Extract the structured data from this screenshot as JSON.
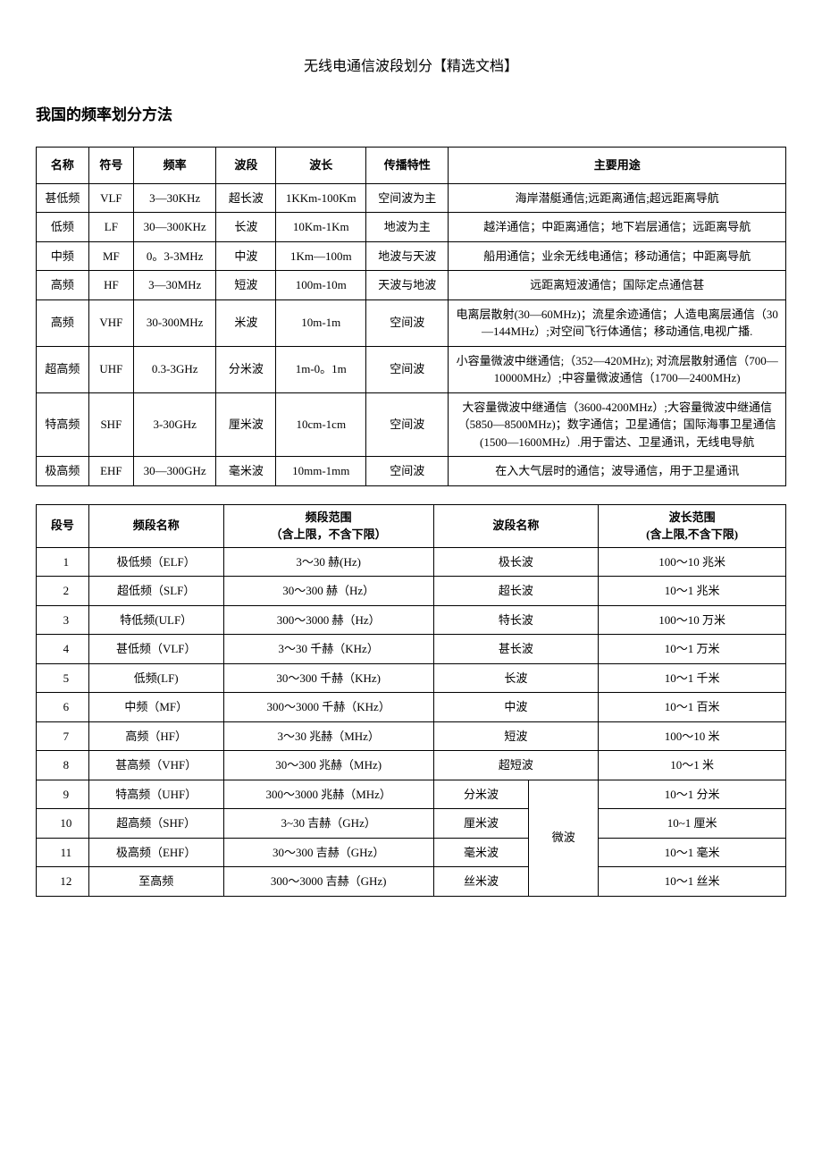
{
  "page_title": "无线电通信波段划分【精选文档】",
  "section_title": "我国的频率划分方法",
  "table1": {
    "headers": [
      "名称",
      "符号",
      "频率",
      "波段",
      "波长",
      "传播特性",
      "主要用途"
    ],
    "rows": [
      [
        "甚低频",
        "VLF",
        "3—30KHz",
        "超长波",
        "1KKm-100Km",
        "空间波为主",
        "海岸潜艇通信;远距离通信;超远距离导航"
      ],
      [
        "低频",
        "LF",
        "30—300KHz",
        "长波",
        "10Km-1Km",
        "地波为主",
        "越洋通信；中距离通信；地下岩层通信；远距离导航"
      ],
      [
        "中频",
        "MF",
        "0。3-3MHz",
        "中波",
        "1Km—100m",
        "地波与天波",
        "船用通信；业余无线电通信；移动通信；中距离导航"
      ],
      [
        "高频",
        "HF",
        "3—30MHz",
        "短波",
        "100m-10m",
        "天波与地波",
        "远距离短波通信；国际定点通信甚"
      ],
      [
        "高频",
        "VHF",
        "30-300MHz",
        "米波",
        "10m-1m",
        "空间波",
        "电离层散射(30—60MHz)；流星余迹通信；人造电离层通信（30—144MHz）;对空间飞行体通信；移动通信,电视广播."
      ],
      [
        "超高频",
        "UHF",
        "0.3-3GHz",
        "分米波",
        "1m-0。1m",
        "空间波",
        "小容量微波中继通信;（352—420MHz); 对流层散射通信（700—10000MHz）;中容量微波通信（1700—2400MHz)"
      ],
      [
        "特高频",
        "SHF",
        "3-30GHz",
        "厘米波",
        "10cm-1cm",
        "空间波",
        "大容量微波中继通信（3600-4200MHz）;大容量微波中继通信（5850—8500MHz)；数字通信；卫星通信；国际海事卫星通信(1500—1600MHz）.用于雷达、卫星通讯，无线电导航"
      ],
      [
        "极高频",
        "EHF",
        "30—300GHz",
        "毫米波",
        "10mm-1mm",
        "空间波",
        "在入大气层时的通信；波导通信，用于卫星通讯"
      ]
    ]
  },
  "table2": {
    "headers": {
      "h1": "段号",
      "h2": "频段名称",
      "h3_line1": "频段范围",
      "h3_line2": "（含上限，不含下限）",
      "h4": "波段名称",
      "h5_line1": "波长范围",
      "h5_line2": "(含上限,不含下限)"
    },
    "rows_simple": [
      [
        "1",
        "极低频（ELF）",
        "3～30 赫(Hz)",
        "极长波",
        "100～10 兆米"
      ],
      [
        "2",
        "超低频（SLF）",
        "30～300 赫（Hz）",
        "超长波",
        "10～1 兆米"
      ],
      [
        "3",
        "特低频(ULF）",
        "300～3000 赫（Hz）",
        "特长波",
        "100～10 万米"
      ],
      [
        "4",
        "甚低频（VLF）",
        "3～30 千赫（KHz）",
        "甚长波",
        "10～1 万米"
      ],
      [
        "5",
        "低频(LF)",
        "30～300 千赫（KHz)",
        "长波",
        "10～1 千米"
      ],
      [
        "6",
        "中频（MF）",
        "300～3000 千赫（KHz）",
        "中波",
        "10～1 百米"
      ],
      [
        "7",
        "高频（HF）",
        "3～30 兆赫（MHz）",
        "短波",
        "100～10 米"
      ],
      [
        "8",
        "甚高频（VHF）",
        "30～300 兆赫（MHz)",
        "超短波",
        "10～1 米"
      ]
    ],
    "rows_merged": [
      [
        "9",
        "特高频（UHF）",
        "300～3000 兆赫（MHz）",
        "分米波",
        "10～1 分米"
      ],
      [
        "10",
        "超高频（SHF）",
        "3~30 吉赫（GHz）",
        "厘米波",
        "10~1 厘米"
      ],
      [
        "11",
        "极高频（EHF）",
        "30～300 吉赫（GHz）",
        "毫米波",
        "10～1 毫米"
      ],
      [
        "12",
        "至高频",
        "300～3000 吉赫（GHz)",
        "丝米波",
        "10～1 丝米"
      ]
    ],
    "merged_label": "微波"
  }
}
